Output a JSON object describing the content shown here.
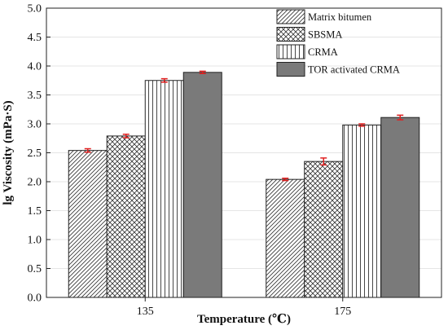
{
  "chart_data": {
    "type": "bar",
    "title": "",
    "xlabel": "Temperature (℃)",
    "ylabel": "lg  Viscosity (mPa·S)",
    "ylim": [
      0,
      5.0
    ],
    "yticks": [
      "0.0",
      "0.5",
      "1.0",
      "1.5",
      "2.0",
      "2.5",
      "3.0",
      "3.5",
      "4.0",
      "4.5",
      "5.0"
    ],
    "categories": [
      "135",
      "175"
    ],
    "grid": true,
    "legend_position": "top-right",
    "series": [
      {
        "name": "Matrix bitumen",
        "pattern": "diagonal-hatch",
        "values": [
          2.54,
          2.04
        ],
        "errors": [
          0.03,
          0.02
        ]
      },
      {
        "name": "SBSMA",
        "pattern": "crosshatch",
        "values": [
          2.79,
          2.35
        ],
        "errors": [
          0.03,
          0.06
        ]
      },
      {
        "name": "CRMA",
        "pattern": "vertical-lines",
        "values": [
          3.75,
          2.98
        ],
        "errors": [
          0.03,
          0.02
        ]
      },
      {
        "name": "TOR activated CRMA",
        "pattern": "solid-gray",
        "values": [
          3.89,
          3.11
        ],
        "errors": [
          0.02,
          0.04
        ]
      }
    ],
    "colors": {
      "bar_outline": "#222222",
      "solid_fill": "#7a7a7a",
      "error_bar": "#e02020",
      "grid": "#dcdcdc"
    }
  }
}
